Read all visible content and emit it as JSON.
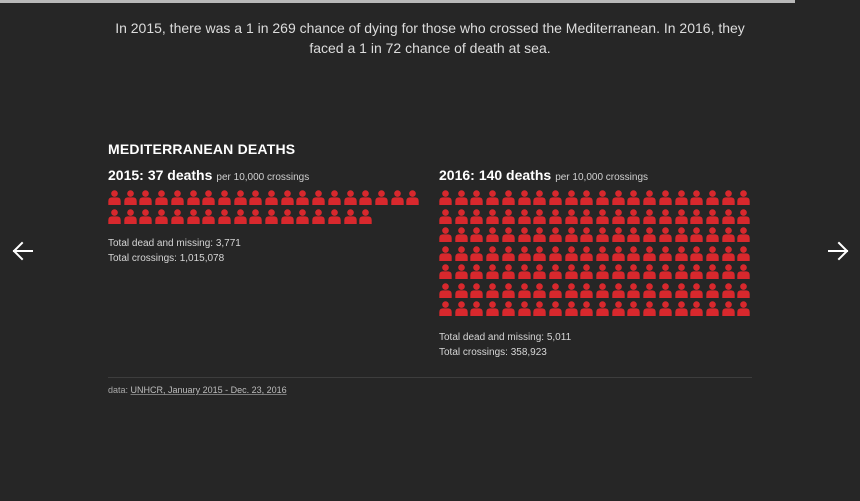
{
  "intro_text": "In 2015, there was a 1 in 269 chance of dying for those who crossed the Mediterranean. In 2016, they faced a 1 in 72 chance of death at sea.",
  "chart_title": "MEDITERRANEAN DEATHS",
  "icon_color": "#d8282d",
  "panels": [
    {
      "year": "2015:",
      "deaths": "37 deaths",
      "unit": "per 10,000 crossings",
      "icon_count": 37,
      "dead_missing": "Total dead and missing: 3,771",
      "crossings": "Total crossings: 1,015,078"
    },
    {
      "year": "2016:",
      "deaths": "140 deaths",
      "unit": "per 10,000 crossings",
      "icon_count": 140,
      "dead_missing": "Total dead and missing: 5,011",
      "crossings": "Total crossings: 358,923"
    }
  ],
  "source": {
    "prefix": "data:",
    "link_text": "UNHCR, January 2015 - Dec. 23, 2016"
  },
  "nav": {
    "prev_icon": "arrow-left-icon",
    "next_icon": "arrow-right-icon"
  }
}
